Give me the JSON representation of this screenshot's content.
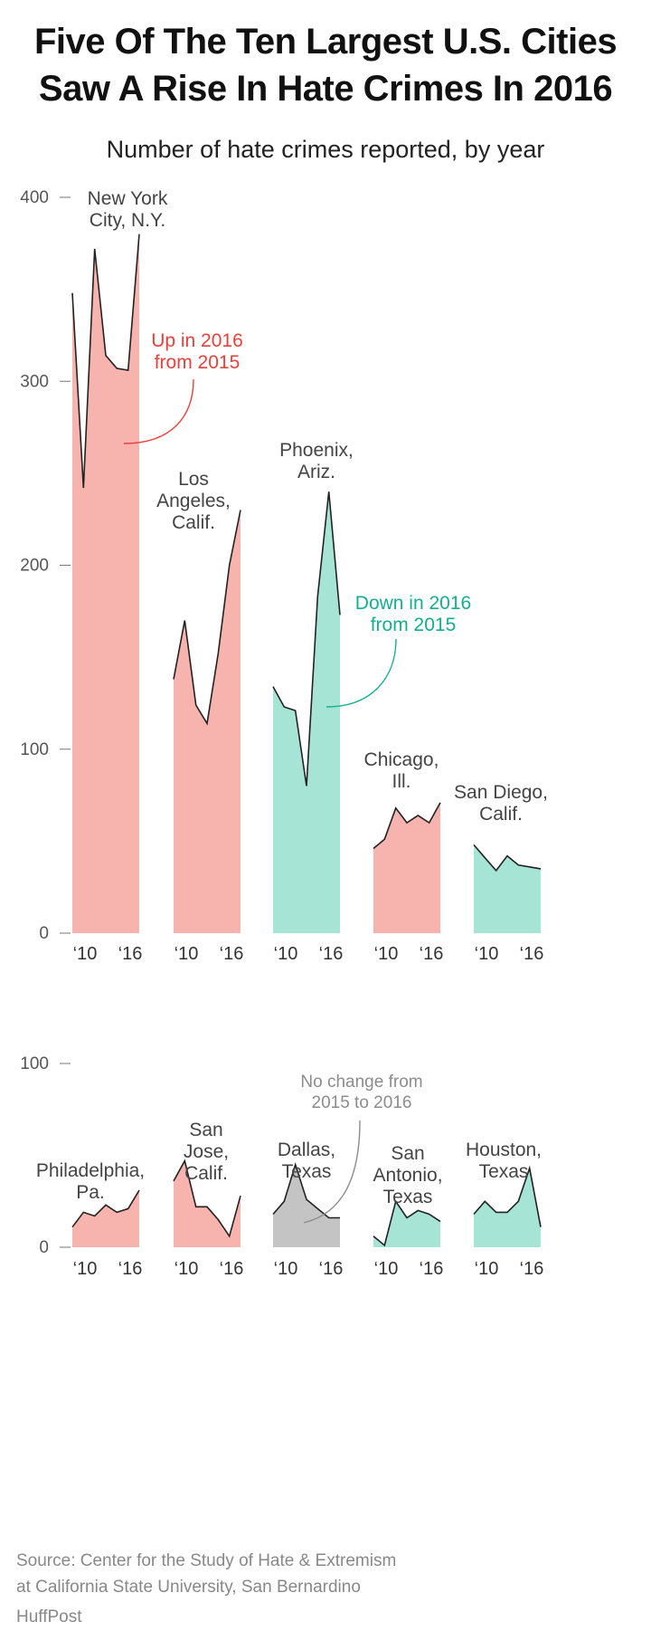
{
  "title_line1": "Five Of The Ten Largest U.S. Cities",
  "title_line2": "Saw A Rise In Hate Crimes In 2016",
  "subtitle": "Number of hate crimes reported, by year",
  "source_line1": "Source: Center for the Study of Hate & Extremism",
  "source_line2": "at California State University, San Bernardino",
  "brand": "HuffPost",
  "colors": {
    "up": "#f7b3ad",
    "down": "#a6e5d6",
    "nochange": "#c4c4c4",
    "line": "#222222",
    "up_annotation": "#e8413c",
    "down_annotation": "#14ae90",
    "nochange_annotation": "#8c8c8c",
    "axis": "#555555"
  },
  "chart_data": [
    {
      "type": "area",
      "panel": "top",
      "x": [
        2010,
        2011,
        2012,
        2013,
        2014,
        2015,
        2016
      ],
      "x_tick_labels": [
        "‘10",
        "‘16"
      ],
      "y_ticks": [
        0,
        100,
        200,
        300,
        400
      ],
      "ylim": [
        0,
        400
      ],
      "series": [
        {
          "name": "New York City, N.Y.",
          "label_lines": [
            "New York",
            "City, N.Y."
          ],
          "status": "up",
          "values": [
            348,
            242,
            372,
            314,
            307,
            306,
            380
          ]
        },
        {
          "name": "Los Angeles, Calif.",
          "label_lines": [
            "Los",
            "Angeles,",
            "Calif."
          ],
          "status": "up",
          "values": [
            138,
            170,
            124,
            114,
            152,
            200,
            230
          ]
        },
        {
          "name": "Phoenix, Ariz.",
          "label_lines": [
            "Phoenix,",
            "Ariz."
          ],
          "status": "down",
          "values": [
            134,
            123,
            121,
            80,
            183,
            240,
            173
          ]
        },
        {
          "name": "Chicago, Ill.",
          "label_lines": [
            "Chicago,",
            "Ill."
          ],
          "status": "up",
          "values": [
            46,
            51,
            68,
            60,
            64,
            60,
            71
          ]
        },
        {
          "name": "San Diego, Calif.",
          "label_lines": [
            "San Diego,",
            "Calif."
          ],
          "status": "down",
          "values": [
            48,
            41,
            34,
            42,
            37,
            36,
            35
          ]
        }
      ],
      "annotations": [
        {
          "text_lines": [
            "Up in 2016",
            "from 2015"
          ],
          "color": "up"
        },
        {
          "text_lines": [
            "Down in 2016",
            "from 2015"
          ],
          "color": "down"
        }
      ]
    },
    {
      "type": "area",
      "panel": "bottom",
      "x": [
        2010,
        2011,
        2012,
        2013,
        2014,
        2015,
        2016
      ],
      "x_tick_labels": [
        "‘10",
        "‘16"
      ],
      "y_ticks": [
        0,
        100
      ],
      "ylim": [
        0,
        100
      ],
      "series": [
        {
          "name": "Philadelphia, Pa.",
          "label_lines": [
            "Philadelphia,",
            "Pa."
          ],
          "status": "up",
          "values": [
            11,
            19,
            17,
            23,
            19,
            21,
            31
          ]
        },
        {
          "name": "San Jose, Calif.",
          "label_lines": [
            "San",
            "Jose,",
            "Calif."
          ],
          "status": "up",
          "values": [
            36,
            47,
            22,
            22,
            15,
            6,
            28
          ]
        },
        {
          "name": "Dallas, Texas",
          "label_lines": [
            "Dallas,",
            "Texas"
          ],
          "status": "nochange",
          "values": [
            18,
            25,
            45,
            26,
            21,
            16,
            16
          ]
        },
        {
          "name": "San Antonio, Texas",
          "label_lines": [
            "San",
            "Antonio,",
            "Texas"
          ],
          "status": "down",
          "values": [
            6,
            1,
            25,
            16,
            20,
            18,
            14
          ]
        },
        {
          "name": "Houston, Texas",
          "label_lines": [
            "Houston,",
            "Texas"
          ],
          "status": "down",
          "values": [
            18,
            25,
            19,
            19,
            25,
            43,
            11
          ]
        }
      ],
      "annotations": [
        {
          "text_lines": [
            "No change from",
            "2015 to 2016"
          ],
          "color": "nochange"
        }
      ]
    }
  ]
}
